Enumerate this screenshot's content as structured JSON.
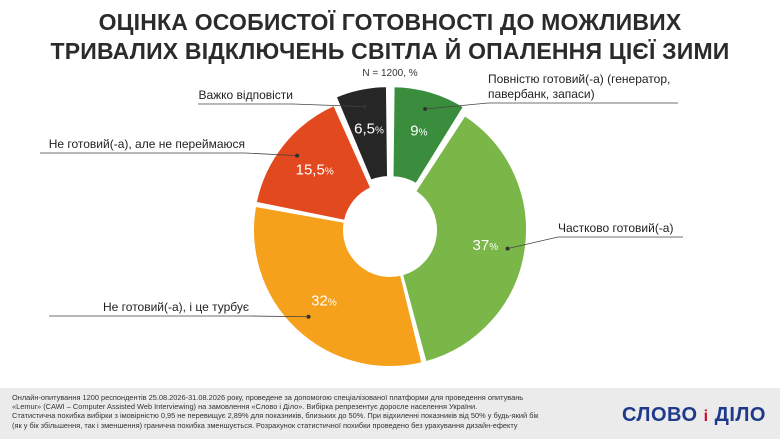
{
  "title_lines": [
    "ОЦІНКА ОСОБИСТОЇ ГОТОВНОСТІ ДО МОЖЛИВИХ",
    "ТРИВАЛИХ ВІДКЛЮЧЕНЬ СВІТЛА Й ОПАЛЕННЯ ЦІЄЇ ЗИМИ"
  ],
  "subtitle": "N = 1200, %",
  "chart_data": {
    "type": "pie",
    "variant": "donut",
    "start_angle_deg": 0,
    "slices": [
      {
        "label": "Повністю готовий(-а) (генератор, павербанк, запаси)",
        "label_lines": [
          "Повністю готовий(-а) (генератор,",
          "павербанк, запаси)"
        ],
        "value": 9,
        "value_text": "9",
        "color": "#3b8d3e"
      },
      {
        "label": "Частково готовий(-а)",
        "label_lines": [
          "Частково готовий(-а)"
        ],
        "value": 37,
        "value_text": "37",
        "color": "#7ab648"
      },
      {
        "label": "Не готовий(-а), і це турбує",
        "label_lines": [
          "Не готовий(-а), і це турбує"
        ],
        "value": 32,
        "value_text": "32",
        "color": "#f5a11c"
      },
      {
        "label": "Не готовий(-а), але не переймаюся",
        "label_lines": [
          "Не готовий(-а), але не переймаюся"
        ],
        "value": 15.5,
        "value_text": "15,5",
        "color": "#e2491f"
      },
      {
        "label": "Важко відповісти",
        "label_lines": [
          "Важко відповісти"
        ],
        "value": 6.5,
        "value_text": "6,5",
        "color": "#262626"
      }
    ],
    "value_suffix": "%"
  },
  "footer_lines": [
    "Онлайн-опитування 1200 респондентів 25.08.2026-31.08.2026 року, проведене за допомогою спеціалізованої платформи для проведення опитувань",
    "«Lemur» (CAWI – Computer Assisted Web Interviewing) на замовлення «Слово і Діло». Вибірка репрезентує доросле населення України.",
    "Статистична похибка вибірки з імовірністю 0,95 не перевищує 2,89% для показників, близьких до 50%. При відхиленні показників від 50% у будь-який бік",
    "(як у бік збільшення, так і зменшення) гранична похибка зменшується. Розрахунок статистичної похибки проведено без урахування дизайн-ефекту"
  ],
  "logo": {
    "left": "СЛОВО",
    "mid": "і",
    "right": "ДІЛО"
  }
}
